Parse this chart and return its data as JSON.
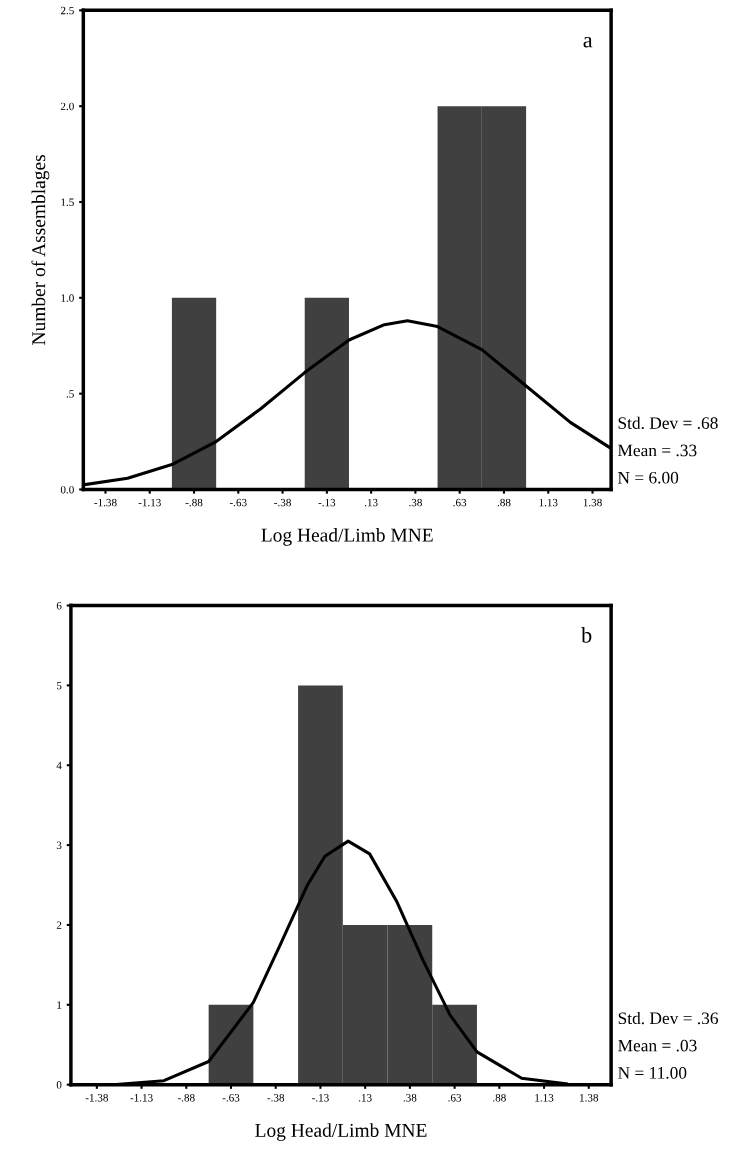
{
  "chart_data": [
    {
      "type": "histogram",
      "ylabel": "Number of Assemblages",
      "xlabel": "Log Head/Limb MNE",
      "color": "#404040",
      "bins": [
        -1.5,
        -1.25,
        -1.0,
        -0.75,
        -0.5,
        -0.25,
        0.0,
        0.25,
        0.5,
        0.75,
        1.0,
        1.25,
        1.5
      ],
      "values": [
        0,
        0,
        1,
        0,
        0,
        1,
        0,
        0,
        2,
        2,
        0,
        0
      ],
      "series": [
        {
          "type": "line",
          "color": "#000000",
          "x": [
            -1.5,
            -1.25,
            -1.0,
            -0.75,
            -0.5,
            -0.25,
            0.0,
            0.2,
            0.33,
            0.5,
            0.75,
            1.0,
            1.25,
            1.47
          ],
          "values": [
            0.024,
            0.059,
            0.13,
            0.25,
            0.42,
            0.61,
            0.78,
            0.86,
            0.88,
            0.85,
            0.73,
            0.54,
            0.35,
            0.22
          ]
        }
      ],
      "xlim": [
        -1.5,
        1.48
      ],
      "ylim": [
        0,
        2.5
      ],
      "xticks": [
        {
          "value": -1.375,
          "label": "-1.38"
        },
        {
          "value": -1.125,
          "label": "-1.13"
        },
        {
          "value": -0.875,
          "label": "-.88"
        },
        {
          "value": -0.625,
          "label": "-.63"
        },
        {
          "value": -0.375,
          "label": "-.38"
        },
        {
          "value": -0.125,
          "label": "-.13"
        },
        {
          "value": 0.125,
          "label": ".13"
        },
        {
          "value": 0.375,
          "label": ".38"
        },
        {
          "value": 0.625,
          "label": ".63"
        },
        {
          "value": 0.875,
          "label": ".88"
        },
        {
          "value": 1.125,
          "label": "1.13"
        },
        {
          "value": 1.375,
          "label": "1.38"
        }
      ],
      "yticks": [
        {
          "value": 0,
          "label": "0.0"
        },
        {
          "value": 0.5,
          "label": ".5"
        },
        {
          "value": 1.0,
          "label": "1.0"
        },
        {
          "value": 1.5,
          "label": "1.5"
        },
        {
          "value": 2.0,
          "label": "2.0"
        },
        {
          "value": 2.5,
          "label": "2.5"
        }
      ],
      "grid": false,
      "annotations": [
        "a",
        "Std. Dev = .68",
        "Mean = .33",
        "N = 6.00"
      ]
    },
    {
      "type": "histogram",
      "xlabel": "Log Head/Limb MNE",
      "color": "#404040",
      "bins": [
        -1.5,
        -1.25,
        -1.0,
        -0.75,
        -0.5,
        -0.25,
        0.0,
        0.25,
        0.5,
        0.75,
        1.0,
        1.25,
        1.5
      ],
      "values": [
        0,
        0,
        0,
        1,
        0,
        5,
        2,
        2,
        1,
        0,
        0,
        0
      ],
      "series": [
        {
          "type": "line",
          "color": "#000000",
          "x": [
            -1.25,
            -1.0,
            -0.75,
            -0.5,
            -0.35,
            -0.2,
            -0.1,
            0.03,
            0.15,
            0.3,
            0.45,
            0.6,
            0.75,
            1.0,
            1.25
          ],
          "values": [
            0.005,
            0.05,
            0.29,
            1.03,
            1.75,
            2.49,
            2.86,
            3.05,
            2.89,
            2.3,
            1.55,
            0.87,
            0.41,
            0.08,
            0.01
          ]
        }
      ],
      "xlim": [
        -1.52,
        1.5
      ],
      "ylim": [
        0,
        6
      ],
      "xticks": [
        {
          "value": -1.375,
          "label": "-1.38"
        },
        {
          "value": -1.125,
          "label": "-1.13"
        },
        {
          "value": -0.875,
          "label": "-.88"
        },
        {
          "value": -0.625,
          "label": "-.63"
        },
        {
          "value": -0.375,
          "label": "-.38"
        },
        {
          "value": -0.125,
          "label": "-.13"
        },
        {
          "value": 0.125,
          "label": ".13"
        },
        {
          "value": 0.375,
          "label": ".38"
        },
        {
          "value": 0.625,
          "label": ".63"
        },
        {
          "value": 0.875,
          "label": ".88"
        },
        {
          "value": 1.125,
          "label": "1.13"
        },
        {
          "value": 1.375,
          "label": "1.38"
        }
      ],
      "yticks": [
        0,
        1,
        2,
        3,
        4,
        5,
        6
      ],
      "grid": false,
      "annotations": [
        "b",
        "Std. Dev = .36",
        "Mean = .03",
        "N = 11.00"
      ]
    }
  ]
}
